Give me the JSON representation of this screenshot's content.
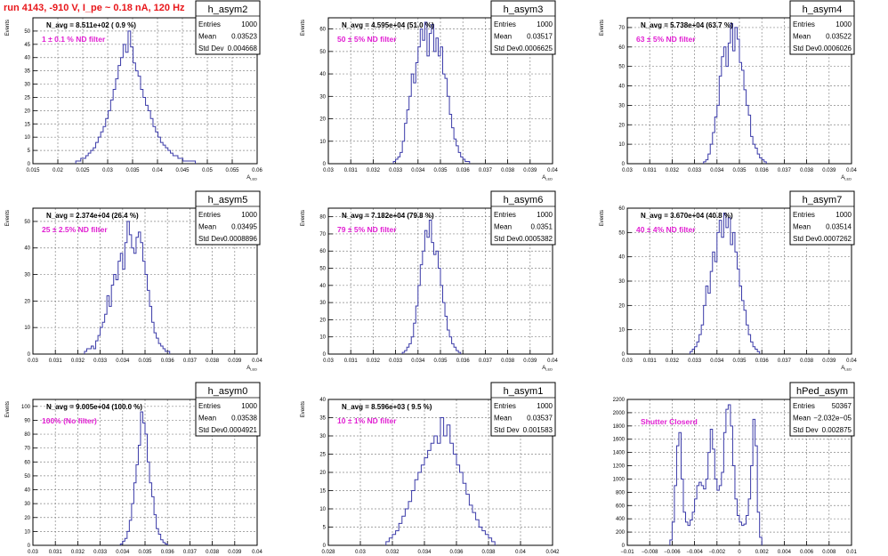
{
  "run_title": "run 4143,  -910 V, I_pe ~ 0.18 nA, 120 Hz",
  "colors": {
    "hist": "#3a3aa8",
    "title": "#e8161a",
    "annot": "#e11fd2",
    "grid": "#888888"
  },
  "stat_labels": {
    "entries": "Entries",
    "mean": "Mean",
    "std": "Std Dev"
  },
  "chart_data": [
    {
      "type": "histogram",
      "name": "h_asym2",
      "ylabel": "Events",
      "xlabel": "A_LED",
      "navg": "N_avg = 8.511e+02 ( 0.9 %)",
      "annotation": "1 ± 0.1 %% ND filter",
      "entries": "1000",
      "mean": "0.03523",
      "std": "0.004668",
      "xlim": [
        0.015,
        0.06
      ],
      "ylim": [
        0,
        55
      ],
      "xticks": [
        0.015,
        0.02,
        0.025,
        0.03,
        0.035,
        0.04,
        0.045,
        0.05,
        0.055,
        0.06
      ],
      "xticklabels": [
        "0.015",
        "0.02",
        "0.025",
        "0.03",
        "0.035",
        "0.04",
        "0.045",
        "0.05",
        "0.055",
        "0.06"
      ],
      "yticks": [
        0,
        5,
        10,
        15,
        20,
        25,
        30,
        35,
        40,
        45,
        50
      ],
      "yticklabels": [
        "0",
        "5",
        "10",
        "15",
        "20",
        "25",
        "30",
        "35",
        "40",
        "45",
        "50"
      ],
      "bins": {
        "x0": 0.0236,
        "width": 0.0005,
        "values": [
          1,
          1,
          2,
          2,
          3,
          4,
          5,
          6,
          8,
          10,
          12,
          14,
          17,
          20,
          24,
          28,
          32,
          37,
          40,
          45,
          42,
          50,
          44,
          38,
          35,
          33,
          28,
          25,
          22,
          20,
          17,
          14,
          12,
          10,
          8,
          7,
          6,
          5,
          4,
          3,
          3,
          2,
          2,
          1,
          1,
          1,
          1,
          1
        ]
      }
    },
    {
      "type": "histogram",
      "name": "h_asym3",
      "ylabel": "Events",
      "xlabel": "A_LED",
      "navg": "N_avg = 4.595e+04 (51.0 %)",
      "annotation": "50 ± 5% ND filter",
      "entries": "1000",
      "mean": "0.03517",
      "std": "0.0006625",
      "xlim": [
        0.03,
        0.04
      ],
      "ylim": [
        0,
        65
      ],
      "xticks": [
        0.03,
        0.031,
        0.032,
        0.033,
        0.034,
        0.035,
        0.036,
        0.037,
        0.038,
        0.039,
        0.04
      ],
      "xticklabels": [
        "0.03",
        "0.031",
        "0.032",
        "0.033",
        "0.034",
        "0.035",
        "0.036",
        "0.037",
        "0.038",
        "0.039",
        "0.04"
      ],
      "yticks": [
        0,
        10,
        20,
        30,
        40,
        50,
        60
      ],
      "yticklabels": [
        "0",
        "10",
        "20",
        "30",
        "40",
        "50",
        "60"
      ],
      "bins": {
        "x0": 0.0329,
        "width": 0.0001,
        "values": [
          1,
          2,
          3,
          5,
          10,
          18,
          24,
          30,
          40,
          36,
          45,
          52,
          60,
          55,
          63,
          48,
          58,
          62,
          50,
          56,
          48,
          52,
          40,
          38,
          30,
          22,
          16,
          11,
          8,
          5,
          3,
          2,
          1,
          1
        ]
      }
    },
    {
      "type": "histogram",
      "name": "h_asym4",
      "ylabel": "Events",
      "xlabel": "A_LED",
      "navg": "N_avg = 5.738e+04 (63.7 %)",
      "annotation": "63 ± 5% ND filter",
      "entries": "1000",
      "mean": "0.03522",
      "std": "0.0006026",
      "xlim": [
        0.03,
        0.04
      ],
      "ylim": [
        0,
        75
      ],
      "xticks": [
        0.03,
        0.031,
        0.032,
        0.033,
        0.034,
        0.035,
        0.036,
        0.037,
        0.038,
        0.039,
        0.04
      ],
      "xticklabels": [
        "0.03",
        "0.031",
        "0.032",
        "0.033",
        "0.034",
        "0.035",
        "0.036",
        "0.037",
        "0.038",
        "0.039",
        "0.04"
      ],
      "yticks": [
        0,
        10,
        20,
        30,
        40,
        50,
        60,
        70
      ],
      "yticklabels": [
        "0",
        "10",
        "20",
        "30",
        "40",
        "50",
        "60",
        "70"
      ],
      "bins": {
        "x0": 0.0334,
        "width": 0.0001,
        "values": [
          1,
          2,
          5,
          10,
          16,
          24,
          30,
          45,
          55,
          60,
          50,
          62,
          72,
          58,
          70,
          64,
          52,
          48,
          38,
          30,
          25,
          14,
          10,
          8,
          5,
          3,
          2,
          1
        ]
      }
    },
    {
      "type": "histogram",
      "name": "h_asym5",
      "ylabel": "Events",
      "xlabel": "A_LED",
      "navg": "N_avg = 2.374e+04 (26.4 %)",
      "annotation": "25 ± 2.5%% ND filter",
      "entries": "1000",
      "mean": "0.03495",
      "std": "0.0008896",
      "xlim": [
        0.03,
        0.04
      ],
      "ylim": [
        0,
        55
      ],
      "xticks": [
        0.03,
        0.031,
        0.032,
        0.033,
        0.034,
        0.035,
        0.036,
        0.037,
        0.038,
        0.039,
        0.04
      ],
      "xticklabels": [
        "0.03",
        "0.031",
        "0.032",
        "0.033",
        "0.034",
        "0.035",
        "0.036",
        "0.037",
        "0.038",
        "0.039",
        "0.04"
      ],
      "yticks": [
        0,
        10,
        20,
        30,
        40,
        50
      ],
      "yticklabels": [
        "0",
        "10",
        "20",
        "30",
        "40",
        "50"
      ],
      "bins": {
        "x0": 0.0323,
        "width": 0.0001,
        "values": [
          1,
          2,
          2,
          3,
          2,
          5,
          7,
          10,
          12,
          15,
          22,
          18,
          26,
          30,
          28,
          35,
          38,
          32,
          42,
          50,
          45,
          40,
          38,
          44,
          46,
          42,
          35,
          30,
          24,
          18,
          12,
          8,
          6,
          4,
          3,
          2,
          1,
          1
        ]
      }
    },
    {
      "type": "histogram",
      "name": "h_asym6",
      "ylabel": "Events",
      "xlabel": "A_LED",
      "navg": "N_avg = 7.182e+04 (79.8 %)",
      "annotation": "79 ± 5% ND filter",
      "entries": "1000",
      "mean": "0.0351",
      "std": "0.0005382",
      "xlim": [
        0.03,
        0.04
      ],
      "ylim": [
        0,
        85
      ],
      "xticks": [
        0.03,
        0.031,
        0.032,
        0.033,
        0.034,
        0.035,
        0.036,
        0.037,
        0.038,
        0.039,
        0.04
      ],
      "xticklabels": [
        "0.03",
        "0.031",
        "0.032",
        "0.033",
        "0.034",
        "0.035",
        "0.036",
        "0.037",
        "0.038",
        "0.039",
        "0.04"
      ],
      "yticks": [
        0,
        10,
        20,
        30,
        40,
        50,
        60,
        70,
        80
      ],
      "yticklabels": [
        "0",
        "10",
        "20",
        "30",
        "40",
        "50",
        "60",
        "70",
        "80"
      ],
      "bins": {
        "x0": 0.0333,
        "width": 0.0001,
        "values": [
          1,
          2,
          4,
          6,
          10,
          18,
          28,
          40,
          52,
          60,
          72,
          68,
          78,
          65,
          58,
          60,
          50,
          40,
          30,
          22,
          14,
          10,
          6,
          4,
          2,
          1
        ]
      }
    },
    {
      "type": "histogram",
      "name": "h_asym7",
      "ylabel": "Events",
      "xlabel": "A_LED",
      "navg": "N_avg = 3.670e+04 (40.8 %)",
      "annotation": "40 ± 4%% ND filter",
      "entries": "1000",
      "mean": "0.03514",
      "std": "0.0007262",
      "xlim": [
        0.03,
        0.04
      ],
      "ylim": [
        0,
        60
      ],
      "xticks": [
        0.03,
        0.031,
        0.032,
        0.033,
        0.034,
        0.035,
        0.036,
        0.037,
        0.038,
        0.039,
        0.04
      ],
      "xticklabels": [
        "0.03",
        "0.031",
        "0.032",
        "0.033",
        "0.034",
        "0.035",
        "0.036",
        "0.037",
        "0.038",
        "0.039",
        "0.04"
      ],
      "yticks": [
        0,
        10,
        20,
        30,
        40,
        50,
        60
      ],
      "yticklabels": [
        "0",
        "10",
        "20",
        "30",
        "40",
        "50",
        "60"
      ],
      "bins": {
        "x0": 0.0328,
        "width": 0.0001,
        "values": [
          1,
          2,
          3,
          5,
          8,
          12,
          20,
          28,
          25,
          34,
          42,
          38,
          50,
          55,
          48,
          58,
          52,
          56,
          45,
          50,
          42,
          35,
          28,
          22,
          18,
          12,
          8,
          5,
          3,
          2,
          1
        ]
      }
    },
    {
      "type": "histogram",
      "name": "h_asym0",
      "ylabel": "Events",
      "xlabel": "A_LED",
      "navg": "N_avg = 9.005e+04 (100.0 %)",
      "annotation": "100%% (No filter)",
      "entries": "1000",
      "mean": "0.03538",
      "std": "0.0004921",
      "xlim": [
        0.03,
        0.04
      ],
      "ylim": [
        0,
        105
      ],
      "xticks": [
        0.03,
        0.031,
        0.032,
        0.033,
        0.034,
        0.035,
        0.036,
        0.037,
        0.038,
        0.039,
        0.04
      ],
      "xticklabels": [
        "0.03",
        "0.031",
        "0.032",
        "0.033",
        "0.034",
        "0.035",
        "0.036",
        "0.037",
        "0.038",
        "0.039",
        "0.04"
      ],
      "yticks": [
        0,
        10,
        20,
        30,
        40,
        50,
        60,
        70,
        80,
        90,
        100
      ],
      "yticklabels": [
        "0",
        "10",
        "20",
        "30",
        "40",
        "50",
        "60",
        "70",
        "80",
        "90",
        "100"
      ],
      "bins": {
        "x0": 0.0339,
        "width": 0.0001,
        "values": [
          1,
          3,
          5,
          10,
          18,
          30,
          45,
          58,
          72,
          96,
          88,
          80,
          60,
          45,
          35,
          22,
          12,
          8,
          4,
          2,
          1
        ]
      }
    },
    {
      "type": "histogram",
      "name": "h_asym1",
      "ylabel": "Events",
      "xlabel": "A_LED",
      "navg": "N_avg = 8.596e+03 ( 9.5 %)",
      "annotation": "10 ± 1% ND filter",
      "entries": "1000",
      "mean": "0.03537",
      "std": "0.001583",
      "xlim": [
        0.028,
        0.042
      ],
      "ylim": [
        0,
        40
      ],
      "xticks": [
        0.028,
        0.03,
        0.032,
        0.034,
        0.036,
        0.038,
        0.04,
        0.042
      ],
      "xticklabels": [
        "0.028",
        "0.03",
        "0.032",
        "0.034",
        "0.036",
        "0.038",
        "0.04",
        "0.042"
      ],
      "yticks": [
        0,
        5,
        10,
        15,
        20,
        25,
        30,
        35,
        40
      ],
      "yticklabels": [
        "0",
        "5",
        "10",
        "15",
        "20",
        "25",
        "30",
        "35",
        "40"
      ],
      "bins": {
        "x0": 0.0316,
        "width": 0.0002,
        "values": [
          1,
          2,
          3,
          4,
          6,
          8,
          10,
          12,
          15,
          18,
          20,
          22,
          24,
          26,
          28,
          30,
          28,
          35,
          30,
          33,
          28,
          25,
          22,
          20,
          17,
          14,
          11,
          9,
          7,
          5,
          4,
          3,
          2,
          1
        ]
      }
    },
    {
      "type": "histogram",
      "name": "hPed_asym",
      "ylabel": "",
      "xlabel": "",
      "navg": "",
      "annotation": "Shutter Closerd",
      "entries": "50367",
      "mean": "−2.032e−05",
      "std": "0.002875",
      "xlim": [
        -0.01,
        0.01
      ],
      "ylim": [
        0,
        2200
      ],
      "xticks": [
        -0.01,
        -0.008,
        -0.006,
        -0.004,
        -0.002,
        0,
        0.002,
        0.004,
        0.006,
        0.008,
        0.01
      ],
      "xticklabels": [
        "−0.01",
        "−0.008",
        "−0.006",
        "−0.004",
        "−0.002",
        "0",
        "0.002",
        "0.004",
        "0.006",
        "0.008",
        "0.01"
      ],
      "yticks": [
        0,
        200,
        400,
        600,
        800,
        1000,
        1200,
        1400,
        1600,
        1800,
        2000,
        2200
      ],
      "yticklabels": [
        "0",
        "200",
        "400",
        "600",
        "800",
        "1000",
        "1200",
        "1400",
        "1600",
        "1800",
        "2000",
        "2200"
      ],
      "bins": {
        "x0": -0.0062,
        "width": 0.0002,
        "values": [
          80,
          350,
          900,
          1500,
          1700,
          1000,
          500,
          350,
          300,
          380,
          500,
          700,
          900,
          950,
          900,
          850,
          1000,
          1400,
          1750,
          1450,
          1000,
          830,
          900,
          1100,
          1700,
          2050,
          2120,
          1800,
          1200,
          700,
          450,
          350,
          300,
          320,
          450,
          700,
          1200,
          1900,
          1500,
          500,
          120
        ]
      }
    }
  ]
}
